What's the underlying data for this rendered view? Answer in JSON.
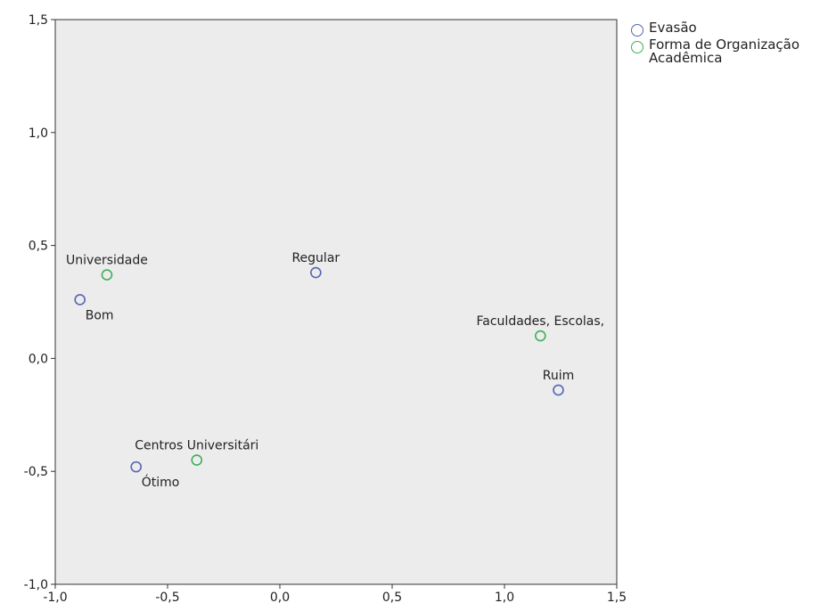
{
  "chart_data": {
    "type": "scatter",
    "title": "",
    "xlabel": "",
    "ylabel": "",
    "xlim": [
      -1.0,
      1.5
    ],
    "ylim": [
      -1.0,
      1.5
    ],
    "xticks": [
      -1.0,
      -0.5,
      0.0,
      0.5,
      1.0,
      1.5
    ],
    "yticks": [
      -1.0,
      -0.5,
      0.0,
      0.5,
      1.0,
      1.5
    ],
    "xtick_labels": [
      "-1,0",
      "-0,5",
      "0,0",
      "0,5",
      "1,0",
      "1,5"
    ],
    "ytick_labels": [
      "-1,0",
      "-0,5",
      "0,0",
      "0,5",
      "1,0",
      "1,5"
    ],
    "grid": false,
    "background": "#ececec",
    "legend_position": "right",
    "series": [
      {
        "name": "Evasão",
        "color": "#5565b5",
        "points": [
          {
            "label": "Bom",
            "x": -0.89,
            "y": 0.26,
            "label_pos": "below-right"
          },
          {
            "label": "Regular",
            "x": 0.16,
            "y": 0.38,
            "label_pos": "above"
          },
          {
            "label": "Ruim",
            "x": 1.24,
            "y": -0.14,
            "label_pos": "above"
          },
          {
            "label": "Ótimo",
            "x": -0.64,
            "y": -0.48,
            "label_pos": "below-right"
          }
        ]
      },
      {
        "name": "Forma de Organização Acadêmica",
        "color": "#3fae5a",
        "points": [
          {
            "label": "Universidade",
            "x": -0.77,
            "y": 0.37,
            "label_pos": "above"
          },
          {
            "label": "Faculdades, Escolas,",
            "x": 1.16,
            "y": 0.1,
            "label_pos": "above"
          },
          {
            "label": "Centros Universitári",
            "x": -0.37,
            "y": -0.45,
            "label_pos": "above"
          }
        ]
      }
    ]
  },
  "legend": {
    "items": [
      {
        "label": "Evasão",
        "color": "#5565b5"
      },
      {
        "label": "Forma de Organização Acadêmica",
        "color": "#3fae5a"
      }
    ]
  }
}
